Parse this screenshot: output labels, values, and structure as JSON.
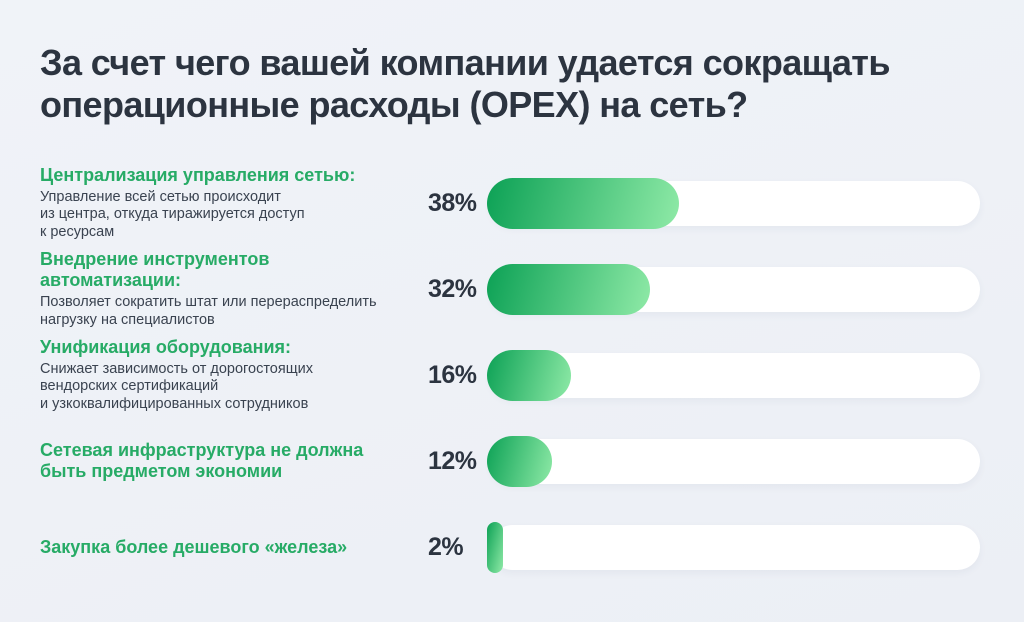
{
  "title": "За счет чего вашей компании удается сокращать\nоперационные расходы (OPEX) на сеть?",
  "colors": {
    "background": "#edf1f6",
    "title_text": "#2c3440",
    "accent_green": "#27ab66",
    "body_text": "#3a4350",
    "bar_track": "#ffffff",
    "bar_gradient_start": "#0ca155",
    "bar_gradient_end": "#8feaa7"
  },
  "rows": [
    {
      "heading": "Централизация управления сетью:",
      "description": "Управление всей сетью происходит\nиз центра, откуда тиражируется доступ\nк ресурсам",
      "value": 38,
      "value_label": "38%"
    },
    {
      "heading": "Внедрение инструментов\nавтоматизации:",
      "description": "Позволяет сократить штат или перераспределить\nнагрузку на специалистов",
      "value": 32,
      "value_label": "32%"
    },
    {
      "heading": "Унификация оборудования:",
      "description": "Снижает зависимость от дорогостоящих\nвендорских сертификаций\nи узкоквалифицированных сотрудников",
      "value": 16,
      "value_label": "16%"
    },
    {
      "heading": "Сетевая инфраструктура не должна\nбыть предметом экономии",
      "description": "",
      "value": 12,
      "value_label": "12%"
    },
    {
      "heading": "Закупка более дешевого «железа»",
      "description": "",
      "value": 2,
      "value_label": "2%"
    }
  ],
  "chart_data": {
    "type": "bar",
    "orientation": "horizontal",
    "title": "За счет чего вашей компании удается сокращать операционные расходы (OPEX) на сеть?",
    "categories": [
      "Централизация управления сетью",
      "Внедрение инструментов автоматизации",
      "Унификация оборудования",
      "Сетевая инфраструктура не должна быть предметом экономии",
      "Закупка более дешевого «железа»"
    ],
    "values": [
      38,
      32,
      16,
      12,
      2
    ],
    "value_suffix": "%",
    "xlabel": "",
    "ylabel": "",
    "xlim": [
      0,
      100
    ],
    "grid": false,
    "legend": false,
    "annotations": [
      "Управление всей сетью происходит из центра, откуда тиражируется доступ к ресурсам",
      "Позволяет сократить штат или перераспределить нагрузку на специалистов",
      "Снижает зависимость от дорогостоящих вендорских сертификаций и узкоквалифицированных сотрудников",
      "",
      ""
    ]
  }
}
